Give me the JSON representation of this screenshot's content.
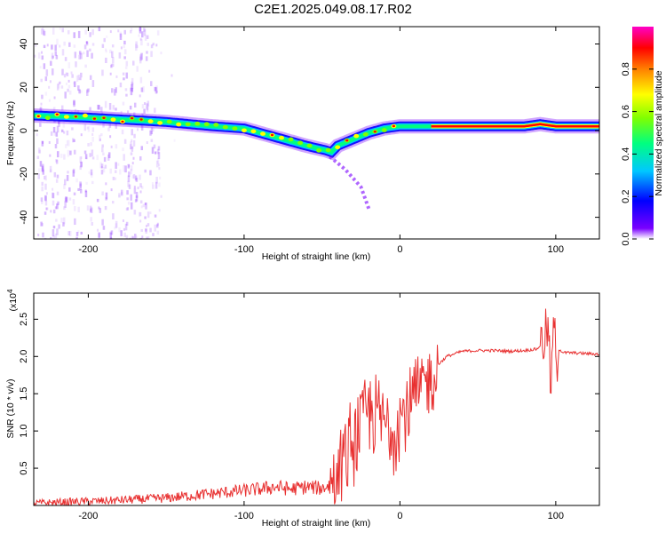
{
  "title": "C2E1.2025.049.08.17.R02",
  "chart_data": [
    {
      "type": "heatmap",
      "title": "C2E1.2025.049.08.17.R02",
      "xlabel": "Height of straight line (km)",
      "ylabel": "Frequency (Hz)",
      "xlim": [
        -235,
        128
      ],
      "ylim": [
        -50,
        48
      ],
      "xticks": [
        -200,
        -100,
        0,
        100
      ],
      "yticks": [
        -40,
        -20,
        0,
        20,
        40
      ],
      "colorbar": {
        "label": "Normalized spectral amplitude",
        "range": [
          0.0,
          1.0
        ],
        "ticks": [
          "0.0",
          "0.2",
          "0.4",
          "0.6",
          "0.8"
        ],
        "colormap": [
          "#ffffff",
          "#7a00ff",
          "#0000ff",
          "#00c8ff",
          "#00ff80",
          "#80ff00",
          "#ffff00",
          "#ff8000",
          "#ff0000",
          "#ff00c8"
        ]
      },
      "ridge": {
        "x": [
          -235,
          -200,
          -150,
          -120,
          -100,
          -80,
          -60,
          -48,
          -44,
          -40,
          -30,
          -20,
          -10,
          0,
          20,
          50,
          80,
          90,
          100,
          128
        ],
        "y": [
          7,
          6,
          4,
          2,
          1,
          -3,
          -7,
          -9,
          -10,
          -7,
          -4,
          -1,
          1,
          2,
          2,
          2,
          2,
          3,
          2,
          2
        ]
      },
      "secondary_branch": {
        "x": [
          -45,
          -40,
          -35,
          -30,
          -25,
          -20
        ],
        "y": [
          -12,
          -15,
          -18,
          -22,
          -26,
          -36
        ]
      }
    },
    {
      "type": "line",
      "xlabel": "Height of straight line (km)",
      "ylabel": "SNR (10 * v/v)",
      "y_multiplier": "(x10",
      "y_multiplier_exp": "4",
      "xlim": [
        -235,
        128
      ],
      "ylim": [
        0,
        2.85
      ],
      "xticks": [
        -200,
        -100,
        0,
        100
      ],
      "yticks": [
        0.5,
        1.0,
        1.5,
        2.0,
        2.5
      ],
      "color": "#e83030",
      "series": [
        {
          "x": [
            -235,
            -210,
            -190,
            -170,
            -150,
            -130,
            -110,
            -100,
            -90,
            -80,
            -70,
            -60,
            -50,
            -45,
            -40,
            -35,
            -30,
            -25,
            -20,
            -15,
            -10,
            -5,
            0,
            5,
            10,
            15,
            20,
            25,
            30,
            40,
            50,
            60,
            70,
            80,
            88,
            92,
            95,
            97,
            99,
            100,
            102,
            105,
            110,
            128
          ],
          "y": [
            0.03,
            0.05,
            0.06,
            0.08,
            0.1,
            0.14,
            0.18,
            0.2,
            0.22,
            0.25,
            0.22,
            0.25,
            0.23,
            0.28,
            0.4,
            0.6,
            0.9,
            1.1,
            1.25,
            1.2,
            1.1,
            1.05,
            1.2,
            1.3,
            1.4,
            1.6,
            1.75,
            1.9,
            2.0,
            2.07,
            2.08,
            2.08,
            2.07,
            2.08,
            2.1,
            2.2,
            2.4,
            1.5,
            2.6,
            1.8,
            2.1,
            2.05,
            2.05,
            2.03
          ]
        }
      ]
    }
  ]
}
